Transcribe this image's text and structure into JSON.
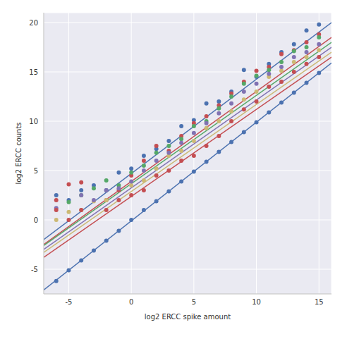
{
  "chart_data": {
    "type": "scatter",
    "x_label": "log2 ERCC spike amount",
    "y_label": "log2 ERCC counts",
    "xlim": [
      -7,
      16
    ],
    "ylim": [
      -7.5,
      21
    ],
    "xticks": [
      -5,
      0,
      5,
      10,
      15
    ],
    "yticks": [
      -5,
      0,
      5,
      10,
      15,
      20
    ],
    "grid": true,
    "marker": "circle",
    "series": [
      {
        "color": "#4c72b0",
        "x": [
          -6,
          -5,
          -4,
          -3,
          -2,
          -1,
          0,
          1,
          2,
          3,
          4,
          5,
          6,
          7,
          8,
          9,
          10,
          11,
          12,
          13,
          14,
          15
        ],
        "values": [
          2.5,
          2.0,
          3.0,
          3.5,
          3.0,
          4.8,
          5.2,
          6.5,
          7.2,
          8.0,
          9.5,
          10.1,
          11.8,
          12.0,
          13.0,
          15.2,
          14.5,
          15.8,
          17.0,
          17.8,
          19.2,
          19.8
        ],
        "fit": {
          "x": [
            -7,
            16
          ],
          "values": [
            -2.0,
            20.0
          ]
        }
      },
      {
        "color": "#c44e52",
        "x": [
          -6,
          -5,
          -4,
          -3,
          -2,
          -1,
          0,
          1,
          2,
          3,
          4,
          5,
          6,
          7,
          8,
          9,
          10,
          11,
          12,
          13,
          14,
          15
        ],
        "values": [
          2.0,
          3.6,
          3.8,
          null,
          2.0,
          3.0,
          4.5,
          6.0,
          7.5,
          7.0,
          8.5,
          9.8,
          10.5,
          11.6,
          12.8,
          14.0,
          15.1,
          15.5,
          16.8,
          17.2,
          18.0,
          18.8
        ],
        "fit": {
          "x": [
            -7,
            16
          ],
          "values": [
            -2.5,
            18.5
          ]
        }
      },
      {
        "color": "#55a868",
        "x": [
          -6,
          -5,
          -4,
          -3,
          -2,
          -1,
          0,
          1,
          2,
          3,
          4,
          5,
          6,
          7,
          8,
          9,
          10,
          11,
          12,
          13,
          14,
          15
        ],
        "values": [
          null,
          1.8,
          2.5,
          3.2,
          4.0,
          3.5,
          4.8,
          5.5,
          6.8,
          7.5,
          8.2,
          9.5,
          10.0,
          11.3,
          12.5,
          13.8,
          14.6,
          15.2,
          16.0,
          17.1,
          17.5,
          18.5
        ],
        "fit": {
          "x": [
            -7,
            16
          ],
          "values": [
            -2.6,
            18.0
          ]
        }
      },
      {
        "color": "#ccb974",
        "x": [
          -6,
          -5,
          -4,
          -3,
          -2,
          -1,
          0,
          1,
          2,
          3,
          4,
          5,
          6,
          7,
          8,
          9,
          10,
          11,
          12,
          13,
          14,
          15
        ],
        "values": [
          0.0,
          0.8,
          1.0,
          1.9,
          2.0,
          null,
          3.5,
          4.0,
          5.2,
          6.5,
          7.0,
          8.0,
          9.3,
          10.0,
          11.0,
          12.2,
          13.0,
          14.5,
          15.1,
          16.0,
          16.5,
          17.2
        ],
        "fit": {
          "x": [
            -7,
            16
          ],
          "values": [
            -3.3,
            17.0
          ]
        }
      },
      {
        "color": "#8172b2",
        "x": [
          -6,
          -5,
          -4,
          -3,
          -2,
          -1,
          0,
          1,
          2,
          3,
          4,
          5,
          6,
          7,
          8,
          9,
          10,
          11,
          12,
          13,
          14,
          15
        ],
        "values": [
          1.2,
          null,
          2.5,
          2.0,
          3.0,
          3.2,
          3.9,
          5.0,
          6.0,
          6.8,
          7.8,
          8.8,
          9.8,
          10.8,
          11.8,
          13.0,
          13.8,
          14.8,
          15.5,
          16.5,
          17.0,
          17.8
        ],
        "fit": {
          "x": [
            -7,
            16
          ],
          "values": [
            -3.0,
            17.5
          ]
        }
      },
      {
        "color": "#c44e52",
        "x": [
          -6,
          -5,
          -4,
          -3,
          -2,
          -1,
          0,
          1,
          2,
          3,
          4,
          5,
          6,
          7,
          8,
          9,
          10,
          11,
          12,
          13,
          14,
          15
        ],
        "values": [
          1.0,
          0.0,
          1.0,
          null,
          1.0,
          2.0,
          2.5,
          3.0,
          4.5,
          5.0,
          6.0,
          6.5,
          7.5,
          8.5,
          10.0,
          11.2,
          12.0,
          13.5,
          14.0,
          15.0,
          15.8,
          16.5
        ],
        "fit": {
          "x": [
            -7,
            16
          ],
          "values": [
            -3.8,
            16.5
          ]
        }
      },
      {
        "color": "#4c72b0",
        "x": [
          -6,
          -5,
          -4,
          -3,
          -2,
          -1,
          0,
          1,
          2,
          3,
          4,
          5,
          6,
          7,
          8,
          9,
          10,
          11,
          12,
          13,
          14,
          15
        ],
        "values": [
          -6.2,
          -5.1,
          -4.1,
          -3.1,
          -2.1,
          -1.1,
          0.0,
          1.0,
          1.9,
          2.9,
          3.9,
          4.9,
          5.9,
          6.9,
          7.9,
          8.9,
          9.9,
          10.9,
          11.9,
          12.9,
          13.9,
          14.9
        ],
        "fit": {
          "x": [
            -7,
            16
          ],
          "values": [
            -7.1,
            15.9
          ]
        }
      }
    ]
  }
}
